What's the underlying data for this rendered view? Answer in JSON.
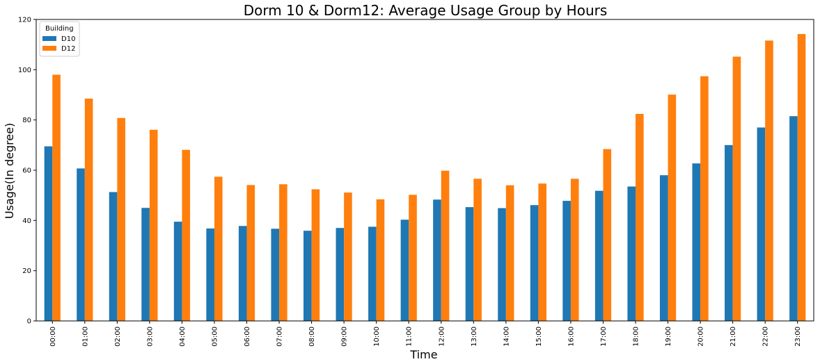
{
  "chart_data": {
    "type": "bar",
    "title": "Dorm 10 & Dorm12: Average Usage Group by Hours",
    "xlabel": "Time",
    "ylabel": "Usage(In degree)",
    "ylim": [
      0,
      120
    ],
    "yticks": [
      0,
      20,
      40,
      60,
      80,
      100,
      120
    ],
    "grid": false,
    "legend": {
      "title": "Building",
      "placement": "top-left"
    },
    "categories": [
      "00:00",
      "01:00",
      "02:00",
      "03:00",
      "04:00",
      "05:00",
      "06:00",
      "07:00",
      "08:00",
      "09:00",
      "10:00",
      "11:00",
      "12:00",
      "13:00",
      "14:00",
      "15:00",
      "16:00",
      "17:00",
      "18:00",
      "19:00",
      "20:00",
      "21:00",
      "22:00",
      "23:00"
    ],
    "series": [
      {
        "name": "D10",
        "color": "#1f77b4",
        "values": [
          69.5,
          60.7,
          51.3,
          45.0,
          39.5,
          36.8,
          37.8,
          36.7,
          35.9,
          37.0,
          37.5,
          40.3,
          48.3,
          45.3,
          44.9,
          46.1,
          47.8,
          51.8,
          53.5,
          58.0,
          62.7,
          70.0,
          77.0,
          81.5
        ]
      },
      {
        "name": "D12",
        "color": "#ff7f0e",
        "values": [
          98.0,
          88.5,
          80.8,
          76.1,
          68.1,
          57.4,
          54.1,
          54.4,
          52.4,
          51.1,
          48.4,
          50.2,
          59.8,
          56.6,
          54.0,
          54.7,
          56.6,
          68.4,
          82.4,
          90.1,
          97.4,
          105.2,
          111.6,
          114.2
        ]
      }
    ]
  }
}
